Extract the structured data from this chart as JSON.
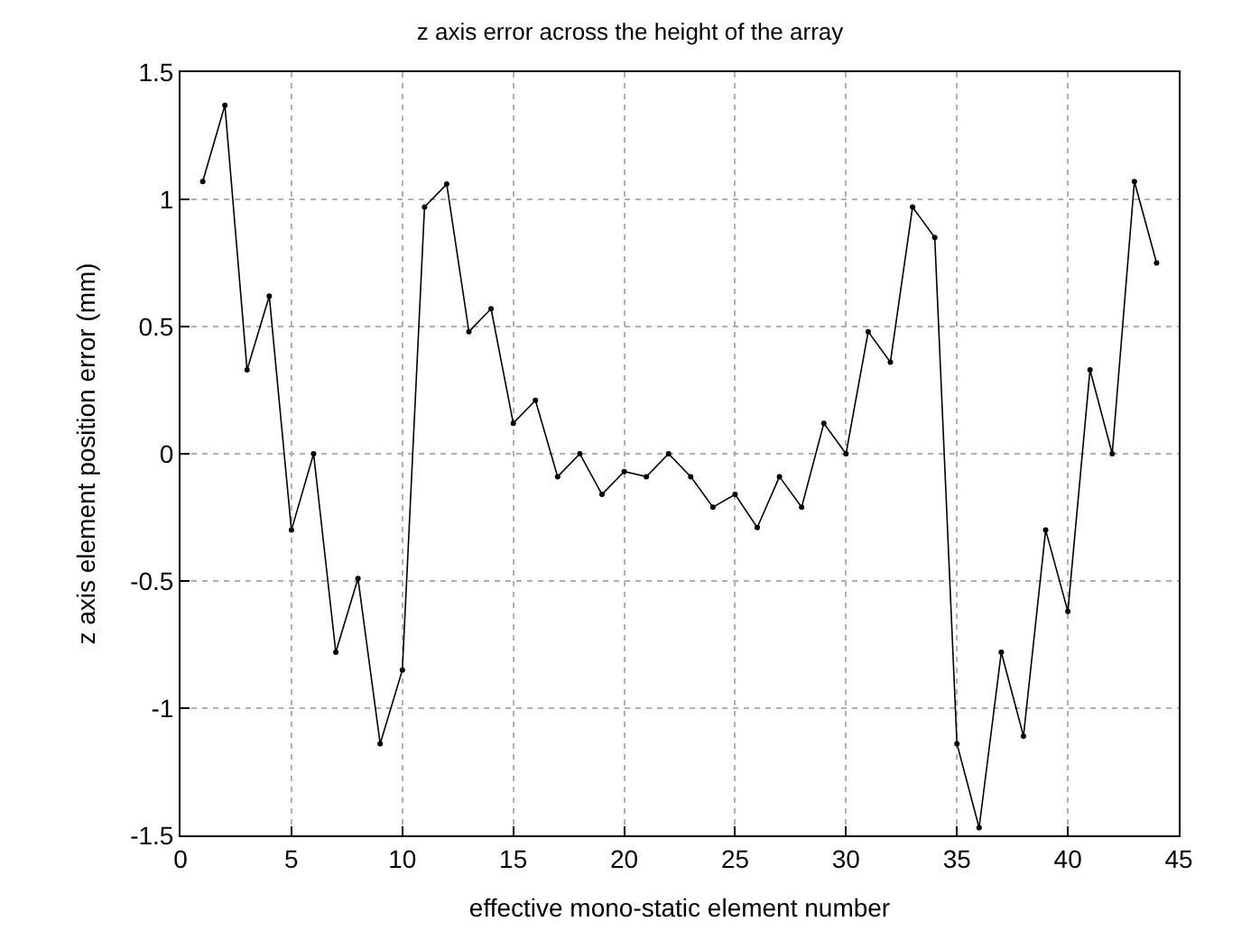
{
  "chart_data": {
    "type": "line",
    "title": "z axis error across the height of the array",
    "xlabel": "effective mono-static element number",
    "ylabel": "z axis element position error (mm)",
    "x": [
      1,
      2,
      3,
      4,
      5,
      6,
      7,
      8,
      9,
      10,
      11,
      12,
      13,
      14,
      15,
      16,
      17,
      18,
      19,
      20,
      21,
      22,
      23,
      24,
      25,
      26,
      27,
      28,
      29,
      30,
      31,
      32,
      33,
      34,
      35,
      36,
      37,
      38,
      39,
      40,
      41,
      42,
      43,
      44
    ],
    "series": [
      {
        "color": "#000000",
        "values": [
          1.07,
          1.37,
          0.33,
          0.62,
          -0.3,
          0,
          -0.78,
          -0.49,
          -1.14,
          -0.85,
          0.97,
          1.06,
          0.48,
          0.57,
          0.12,
          0.21,
          -0.09,
          0,
          -0.16,
          -0.07,
          -0.09,
          0,
          -0.09,
          -0.21,
          -0.16,
          -0.29,
          -0.09,
          -0.21,
          0.12,
          0,
          0.48,
          0.36,
          0.97,
          0.85,
          -1.14,
          -1.47,
          -0.78,
          -1.11,
          -0.3,
          -0.62,
          0.33,
          0,
          1.07,
          0.75
        ]
      }
    ],
    "xlim": [
      0,
      45
    ],
    "xticks": [
      0,
      5,
      10,
      15,
      20,
      25,
      30,
      35,
      40,
      45
    ],
    "ylim": [
      -1.5,
      1.5
    ],
    "yticks": [
      -1.5,
      -1,
      -0.5,
      0,
      0.5,
      1,
      1.5
    ],
    "grid": true,
    "marker": "circle",
    "line_style": "solid"
  }
}
